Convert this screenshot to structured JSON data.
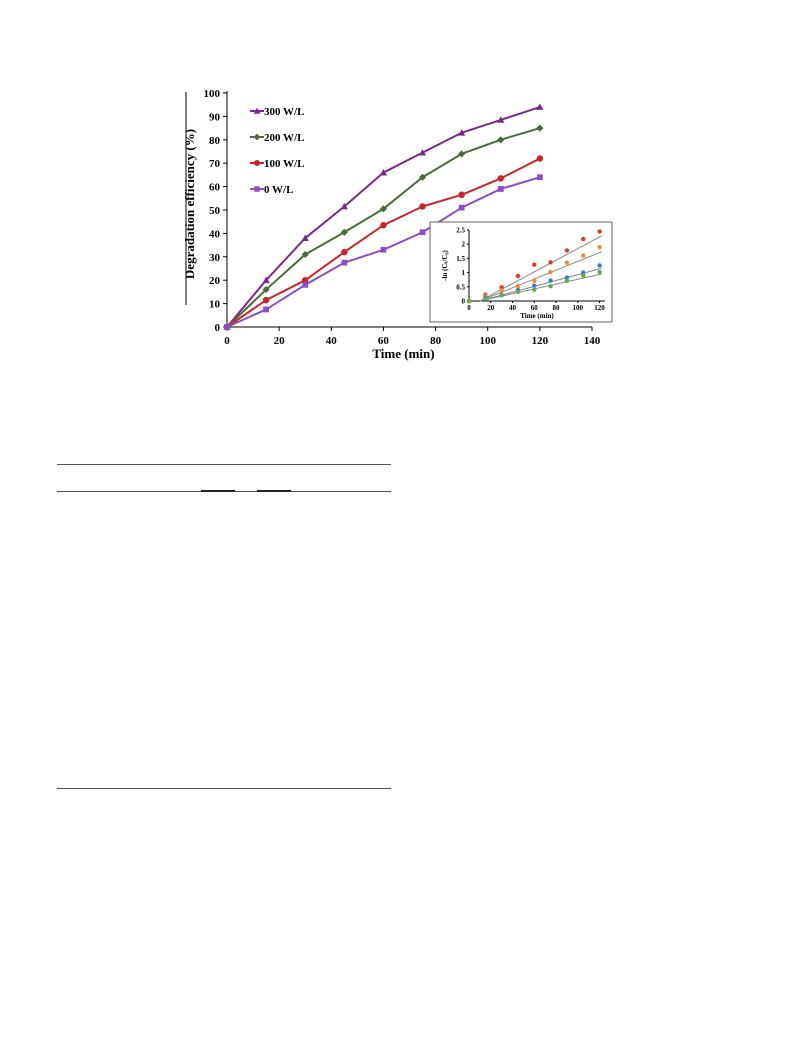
{
  "chart_data": [
    {
      "type": "line",
      "title": "",
      "xlabel": "Time (min)",
      "ylabel": "Degradation efficiency (%)",
      "xlim": [
        0,
        140
      ],
      "ylim": [
        0,
        100
      ],
      "x_ticks": [
        0,
        20,
        40,
        60,
        80,
        100,
        120,
        140
      ],
      "y_ticks": [
        0,
        10,
        20,
        30,
        40,
        50,
        60,
        70,
        80,
        90,
        100
      ],
      "grid": false,
      "legend_position": "top-left",
      "x": [
        0,
        15,
        30,
        45,
        60,
        75,
        90,
        105,
        120
      ],
      "series": [
        {
          "name": "300 W/L",
          "color": "#7a2a8c",
          "marker": "triangle",
          "values": [
            0,
            20,
            38,
            51.5,
            66,
            74.5,
            83,
            88.5,
            94
          ]
        },
        {
          "name": "200 W/L",
          "color": "#4a6b3a",
          "marker": "diamond",
          "values": [
            0,
            16,
            31,
            40.5,
            50.5,
            64,
            74,
            80,
            85
          ]
        },
        {
          "name": "100 W/L",
          "color": "#c9262c",
          "marker": "circle",
          "values": [
            0,
            11.5,
            20,
            32,
            43.5,
            51.5,
            56.5,
            63.5,
            72
          ]
        },
        {
          "name": "0 W/L",
          "color": "#8a4fc4",
          "marker": "square",
          "values": [
            0,
            7.5,
            18,
            27.5,
            33,
            40.5,
            51,
            59,
            64
          ]
        }
      ]
    },
    {
      "type": "scatter",
      "title": "",
      "xlabel": "Time (min)",
      "ylabel": "-ln (Cₜ/C₀)",
      "xlim": [
        0,
        125
      ],
      "ylim": [
        0,
        2.5
      ],
      "x_ticks": [
        0,
        20,
        40,
        60,
        80,
        100,
        120
      ],
      "y_ticks": [
        0,
        0.5,
        1,
        1.5,
        2,
        2.5
      ],
      "x": [
        0,
        15,
        30,
        45,
        60,
        75,
        90,
        105,
        120
      ],
      "series": [
        {
          "color": "#e03a2e",
          "slope": 0.0205,
          "values": [
            0,
            0.22,
            0.48,
            0.88,
            1.28,
            1.36,
            1.78,
            2.18,
            2.45
          ]
        },
        {
          "color": "#f08a3c",
          "slope": 0.0155,
          "values": [
            0,
            0.17,
            0.37,
            0.52,
            0.71,
            1.02,
            1.35,
            1.6,
            1.9
          ]
        },
        {
          "color": "#3d7cc9",
          "slope": 0.0103,
          "values": [
            0,
            0.12,
            0.22,
            0.39,
            0.54,
            0.72,
            0.82,
            1.0,
            1.25
          ]
        },
        {
          "color": "#6aa84f",
          "slope": 0.0085,
          "values": [
            0,
            0.08,
            0.2,
            0.32,
            0.4,
            0.52,
            0.71,
            0.89,
            1.02
          ]
        }
      ]
    }
  ]
}
